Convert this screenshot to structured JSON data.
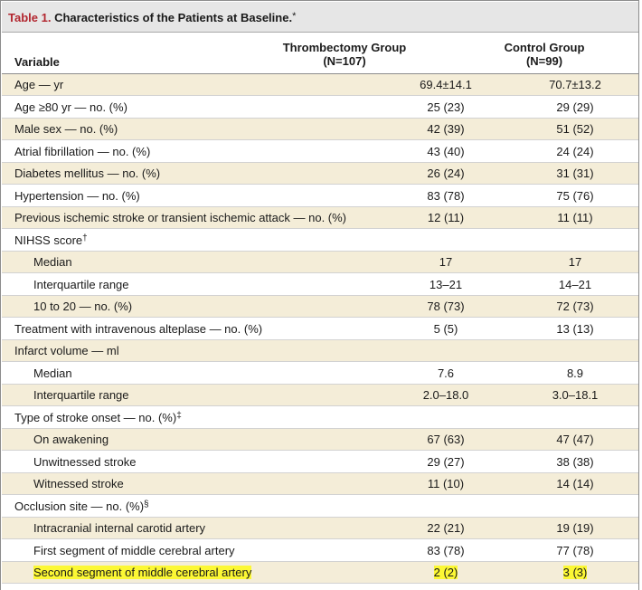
{
  "table": {
    "title_number": "Table 1.",
    "title_text": "Characteristics of the Patients at Baseline.",
    "title_mark": "*",
    "columns": {
      "variable": "Variable",
      "group1_line1": "Thrombectomy Group",
      "group1_line2": "(N=107)",
      "group2_line1": "Control Group",
      "group2_line2": "(N=99)"
    },
    "rows": [
      {
        "label": "Age — yr",
        "c1": "69.4±14.1",
        "c2": "70.7±13.2",
        "indent": 0
      },
      {
        "label": "Age ≥80 yr — no. (%)",
        "c1": "25 (23)",
        "c2": "29 (29)",
        "indent": 0
      },
      {
        "label": "Male sex — no. (%)",
        "c1": "42 (39)",
        "c2": "51 (52)",
        "indent": 0
      },
      {
        "label": "Atrial fibrillation — no. (%)",
        "c1": "43 (40)",
        "c2": "24 (24)",
        "indent": 0
      },
      {
        "label": "Diabetes mellitus — no. (%)",
        "c1": "26 (24)",
        "c2": "31 (31)",
        "indent": 0
      },
      {
        "label": "Hypertension — no. (%)",
        "c1": "83 (78)",
        "c2": "75 (76)",
        "indent": 0
      },
      {
        "label": "Previous ischemic stroke or transient ischemic attack — no. (%)",
        "c1": "12 (11)",
        "c2": "11 (11)",
        "indent": 0
      },
      {
        "label": "NIHSS score",
        "mark": "†",
        "c1": "",
        "c2": "",
        "indent": 0
      },
      {
        "label": "Median",
        "c1": "17",
        "c2": "17",
        "indent": 1
      },
      {
        "label": "Interquartile range",
        "c1": "13–21",
        "c2": "14–21",
        "indent": 1
      },
      {
        "label": "10 to 20 — no. (%)",
        "c1": "78 (73)",
        "c2": "72 (73)",
        "indent": 1
      },
      {
        "label": "Treatment with intravenous alteplase — no. (%)",
        "c1": "5 (5)",
        "c2": "13 (13)",
        "indent": 0
      },
      {
        "label": "Infarct volume — ml",
        "c1": "",
        "c2": "",
        "indent": 0
      },
      {
        "label": "Median",
        "c1": "7.6",
        "c2": "8.9",
        "indent": 1
      },
      {
        "label": "Interquartile range",
        "c1": "2.0–18.0",
        "c2": "3.0–18.1",
        "indent": 1
      },
      {
        "label": "Type of stroke onset — no. (%)",
        "mark": "‡",
        "c1": "",
        "c2": "",
        "indent": 0
      },
      {
        "label": "On awakening",
        "c1": "67 (63)",
        "c2": "47 (47)",
        "indent": 1
      },
      {
        "label": "Unwitnessed stroke",
        "c1": "29 (27)",
        "c2": "38 (38)",
        "indent": 1
      },
      {
        "label": "Witnessed stroke",
        "c1": "11 (10)",
        "c2": "14 (14)",
        "indent": 1
      },
      {
        "label": "Occlusion site — no. (%)",
        "mark": "§",
        "c1": "",
        "c2": "",
        "indent": 0
      },
      {
        "label": "Intracranial internal carotid artery",
        "c1": "22 (21)",
        "c2": "19 (19)",
        "indent": 1
      },
      {
        "label": "First segment of middle cerebral artery",
        "c1": "83 (78)",
        "c2": "77 (78)",
        "indent": 1
      },
      {
        "label": "Second segment of middle cerebral artery",
        "c1": "2 (2)",
        "c2": "3 (3)",
        "indent": 1,
        "highlighted": true
      }
    ]
  },
  "colors": {
    "title_bar": "#e6e6e6",
    "title_number": "#b2262f",
    "shaded_row": "#f4edd8",
    "highlight": "#fcf834"
  }
}
